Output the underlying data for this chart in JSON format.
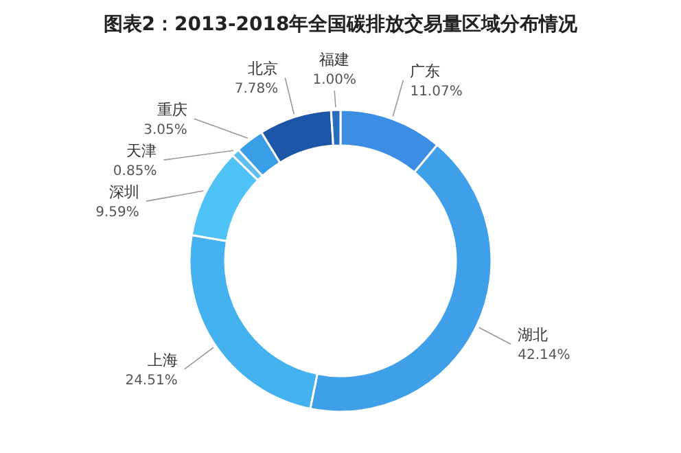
{
  "chart_data": {
    "type": "donut",
    "title": "图表2：2013-2018年全国碳排放交易量区域分布情况",
    "categories": [
      "广东",
      "湖北",
      "上海",
      "深圳",
      "天津",
      "重庆",
      "北京",
      "福建"
    ],
    "values": [
      11.07,
      42.14,
      24.51,
      9.59,
      0.85,
      3.05,
      7.78,
      1.0
    ],
    "value_labels": [
      "11.07%",
      "42.14%",
      "24.51%",
      "9.59%",
      "0.85%",
      "3.05%",
      "7.78%",
      "1.00%"
    ],
    "colors": [
      "#3b8ee3",
      "#3f9fe8",
      "#45b2f0",
      "#4fc3f7",
      "#5fbdf0",
      "#3a9ee6",
      "#1d55a8",
      "#2a6fbf"
    ],
    "legend": false
  }
}
